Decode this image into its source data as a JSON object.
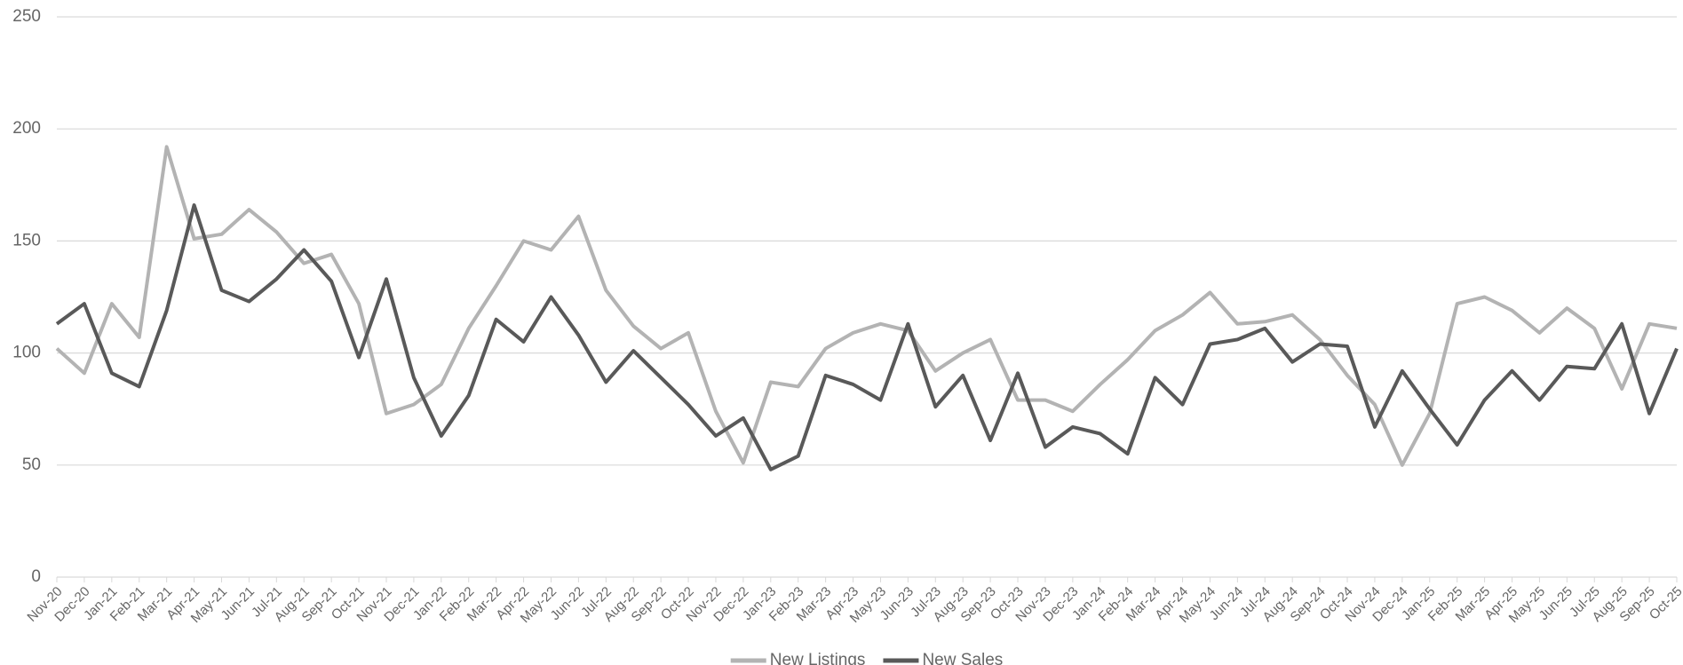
{
  "chart_data": {
    "type": "line",
    "categories": [
      "Nov-20",
      "Dec-20",
      "Jan-21",
      "Feb-21",
      "Mar-21",
      "Apr-21",
      "May-21",
      "Jun-21",
      "Jul-21",
      "Aug-21",
      "Sep-21",
      "Oct-21",
      "Nov-21",
      "Dec-21",
      "Jan-22",
      "Feb-22",
      "Mar-22",
      "Apr-22",
      "May-22",
      "Jun-22",
      "Jul-22",
      "Aug-22",
      "Sep-22",
      "Oct-22",
      "Nov-22",
      "Dec-22",
      "Jan-23",
      "Feb-23",
      "Mar-23",
      "Apr-23",
      "May-23",
      "Jun-23",
      "Jul-23",
      "Aug-23",
      "Sep-23",
      "Oct-23",
      "Nov-23",
      "Dec-23",
      "Jan-24",
      "Feb-24",
      "Mar-24",
      "Apr-24",
      "May-24",
      "Jun-24",
      "Jul-24",
      "Aug-24",
      "Sep-24",
      "Oct-24",
      "Nov-24",
      "Dec-24",
      "Jan-25",
      "Feb-25",
      "Mar-25",
      "Apr-25",
      "May-25",
      "Jun-25",
      "Jul-25",
      "Aug-25",
      "Sep-25",
      "Oct-25"
    ],
    "series": [
      {
        "name": "New Listings",
        "color": "#b3b3b3",
        "values": [
          102,
          91,
          122,
          107,
          192,
          151,
          153,
          164,
          154,
          140,
          144,
          122,
          73,
          77,
          86,
          111,
          130,
          150,
          146,
          161,
          128,
          112,
          102,
          109,
          74,
          51,
          87,
          85,
          102,
          109,
          113,
          110,
          92,
          100,
          106,
          79,
          79,
          74,
          86,
          97,
          110,
          117,
          127,
          113,
          114,
          117,
          106,
          90,
          77,
          50,
          73,
          122,
          125,
          119,
          109,
          120,
          111,
          84,
          113,
          111
        ]
      },
      {
        "name": "New Sales",
        "color": "#595959",
        "values": [
          113,
          122,
          91,
          85,
          119,
          166,
          128,
          123,
          133,
          146,
          132,
          98,
          133,
          89,
          63,
          81,
          115,
          105,
          125,
          108,
          87,
          101,
          89,
          77,
          63,
          71,
          48,
          54,
          90,
          86,
          79,
          113,
          76,
          90,
          61,
          91,
          58,
          67,
          64,
          55,
          89,
          77,
          104,
          106,
          111,
          96,
          104,
          103,
          67,
          92,
          75,
          59,
          79,
          92,
          79,
          94,
          93,
          113,
          73,
          102
        ]
      }
    ],
    "ylim": [
      0,
      250
    ],
    "yticks": [
      0,
      50,
      100,
      150,
      200,
      250
    ],
    "grid": true
  }
}
